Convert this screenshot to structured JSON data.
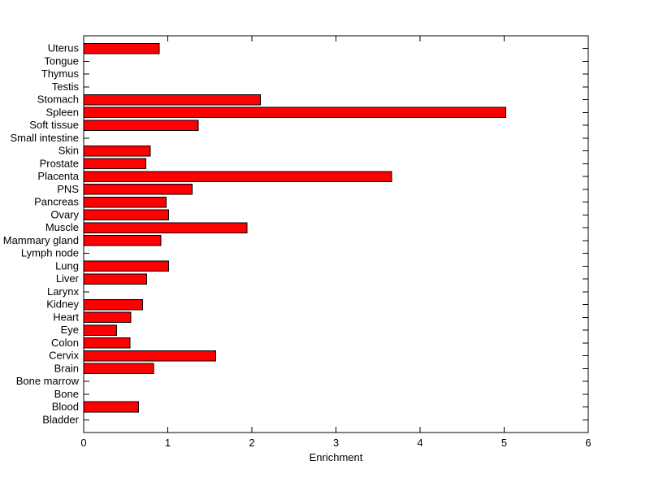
{
  "figure": {
    "background": "#FFFFFF"
  },
  "chart_data": {
    "type": "bar",
    "orientation": "horizontal",
    "title": "",
    "xlabel": "Enrichment",
    "ylabel": "",
    "xlim": [
      0,
      6
    ],
    "xticks": [
      0,
      1,
      2,
      3,
      4,
      5,
      6
    ],
    "grid": false,
    "legend": null,
    "bar_color": "#FF0000",
    "bar_edge_color": "#000000",
    "axis_color": "#000000",
    "categories": [
      "Uterus",
      "Tongue",
      "Thymus",
      "Testis",
      "Stomach",
      "Spleen",
      "Soft tissue",
      "Small intestine",
      "Skin",
      "Prostate",
      "Placenta",
      "PNS",
      "Pancreas",
      "Ovary",
      "Muscle",
      "Mammary gland",
      "Lymph node",
      "Lung",
      "Liver",
      "Larynx",
      "Kidney",
      "Heart",
      "Eye",
      "Colon",
      "Cervix",
      "Brain",
      "Bone marrow",
      "Bone",
      "Blood",
      "Bladder"
    ],
    "values": [
      0.9,
      0,
      0,
      0,
      2.1,
      5.02,
      1.36,
      0,
      0.79,
      0.74,
      3.66,
      1.29,
      0.98,
      1.01,
      1.94,
      0.92,
      0,
      1.01,
      0.75,
      0,
      0.7,
      0.56,
      0.39,
      0.55,
      1.57,
      0.83,
      0,
      0,
      0.65,
      0
    ]
  }
}
